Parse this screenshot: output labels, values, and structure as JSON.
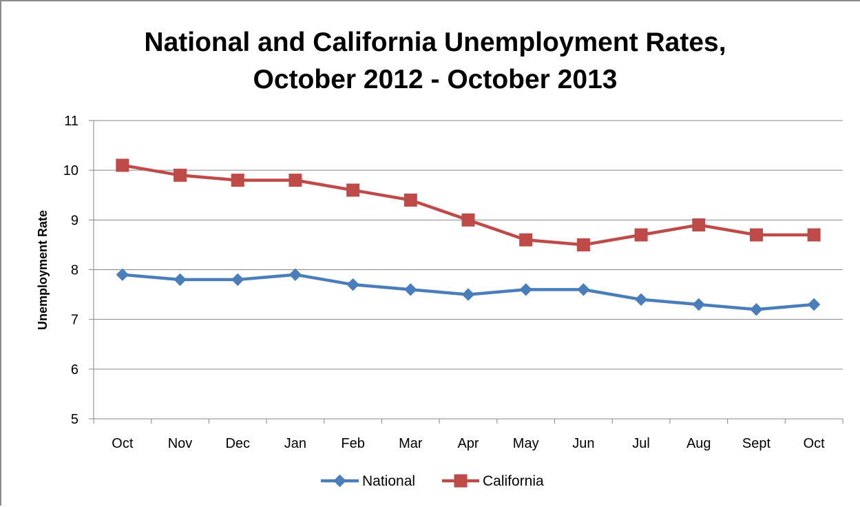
{
  "chart_data": {
    "type": "line",
    "title_line1": "National and California Unemployment Rates,",
    "title_line2": "October 2012 - October 2013",
    "xlabel": "",
    "ylabel": "Unemployment Rate",
    "categories": [
      "Oct",
      "Nov",
      "Dec",
      "Jan",
      "Feb",
      "Mar",
      "Apr",
      "May",
      "Jun",
      "Jul",
      "Aug",
      "Sept",
      "Oct"
    ],
    "ylim": [
      5,
      11
    ],
    "yticks": [
      "5",
      "6",
      "7",
      "8",
      "9",
      "10",
      "11"
    ],
    "grid": "horizontal",
    "legend_position": "bottom",
    "series": [
      {
        "name": "National",
        "color": "#4a7ebb",
        "marker": "diamond",
        "values": [
          7.9,
          7.8,
          7.8,
          7.9,
          7.7,
          7.6,
          7.5,
          7.6,
          7.6,
          7.4,
          7.3,
          7.2,
          7.3
        ]
      },
      {
        "name": "California",
        "color": "#be4b48",
        "marker": "square",
        "values": [
          10.1,
          9.9,
          9.8,
          9.8,
          9.6,
          9.4,
          9.0,
          8.6,
          8.5,
          8.7,
          8.9,
          8.7,
          8.7
        ]
      }
    ]
  }
}
